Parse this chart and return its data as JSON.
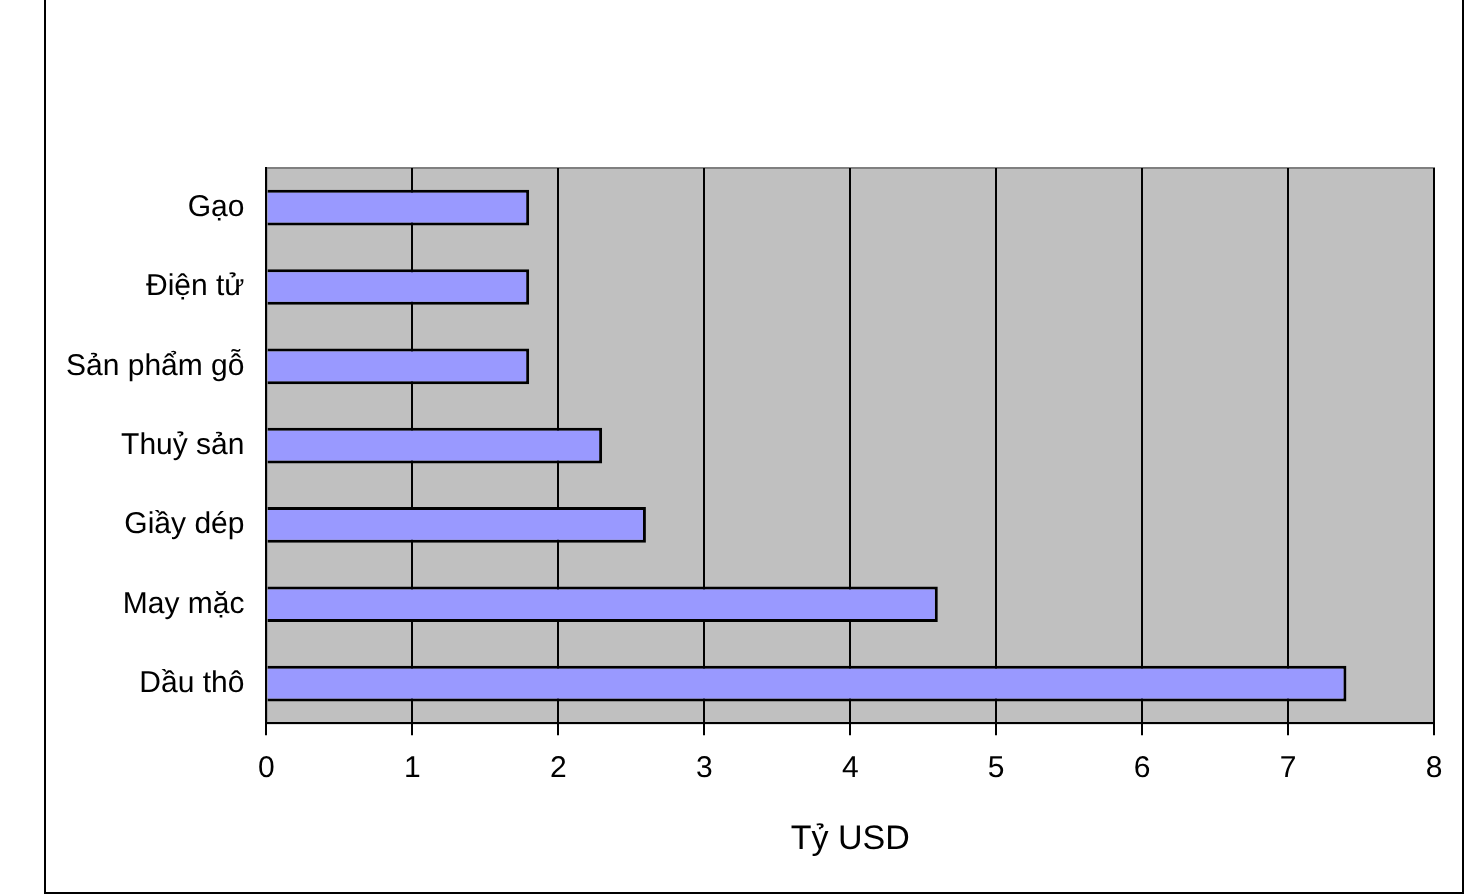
{
  "chart_data": {
    "type": "bar",
    "orientation": "horizontal",
    "xlabel": "Tỷ USD",
    "categories": [
      "Gạo",
      "Điện tử",
      "Sản phẩm gỗ",
      "Thuỷ sản",
      "Giầy dép",
      "May mặc",
      "Dầu thô"
    ],
    "values": [
      1.8,
      1.8,
      1.8,
      2.3,
      2.6,
      4.6,
      7.4
    ],
    "color": "#9999ff",
    "xlim": [
      0,
      8
    ],
    "xticks": [
      0,
      1,
      2,
      3,
      4,
      5,
      6,
      7,
      8
    ],
    "grid": "x",
    "legend": false
  }
}
